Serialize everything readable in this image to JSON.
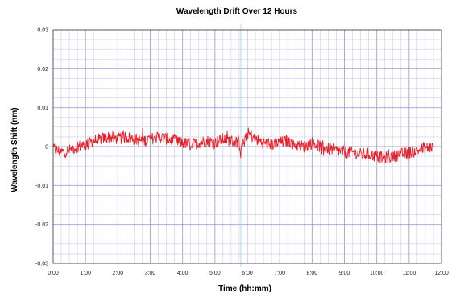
{
  "chart_data": {
    "type": "line",
    "title": "Wavelength Drift Over 12 Hours",
    "xlabel": "Time (hh:mm)",
    "ylabel": "Wavelength Shift (nm)",
    "xlim": [
      0,
      12
    ],
    "ylim": [
      -0.03,
      0.03
    ],
    "grid": true,
    "x_tick_labels": [
      "0:00",
      "1:00",
      "2:00",
      "3:00",
      "4:00",
      "5:00",
      "6:00",
      "7:00",
      "8:00",
      "9:00",
      "10:00",
      "11:00",
      "12:00"
    ],
    "y_tick_labels": [
      "-0.03",
      "-0.02",
      "-0.01",
      "0",
      "0.01",
      "0.02",
      "0.03"
    ],
    "y_tick_values": [
      -0.03,
      -0.02,
      -0.01,
      0,
      0.01,
      0.02,
      0.03
    ],
    "colors": {
      "series": "#e8202a",
      "grid": "#c9c9ee",
      "grid_major": "#9f9fd6",
      "cursor": "#a8def0"
    },
    "cursor_x": 5.8,
    "series": [
      {
        "x": [
          0,
          0.25,
          0.5,
          0.75,
          1,
          1.25,
          1.5,
          1.75,
          2,
          2.25,
          2.5,
          2.75,
          3,
          3.25,
          3.5,
          3.75,
          4,
          4.25,
          4.5,
          4.75,
          5,
          5.25,
          5.5,
          5.75,
          5.8,
          6,
          6.25,
          6.5,
          6.75,
          7,
          7.25,
          7.5,
          7.75,
          8,
          8.25,
          8.5,
          8.75,
          9,
          9.25,
          9.5,
          9.75,
          10,
          10.25,
          10.5,
          10.75,
          11,
          11.25,
          11.5,
          11.75
        ],
        "y": [
          -0.0005,
          -0.0015,
          -0.001,
          0,
          0.0005,
          0.0015,
          0.002,
          0.0025,
          0.002,
          0.0025,
          0.002,
          0.0015,
          0.002,
          0.0025,
          0.002,
          0.0015,
          0.001,
          0.0005,
          0.001,
          0.0015,
          0.001,
          0.002,
          0.0015,
          0.001,
          -0.001,
          0.0035,
          0.002,
          0.001,
          0.0005,
          0.001,
          0.0015,
          0.0005,
          0,
          0.001,
          0,
          -0.0005,
          -0.001,
          -0.0015,
          -0.0015,
          -0.002,
          -0.002,
          -0.0025,
          -0.003,
          -0.0025,
          -0.002,
          -0.0015,
          -0.001,
          -0.0005,
          0
        ]
      }
    ]
  }
}
